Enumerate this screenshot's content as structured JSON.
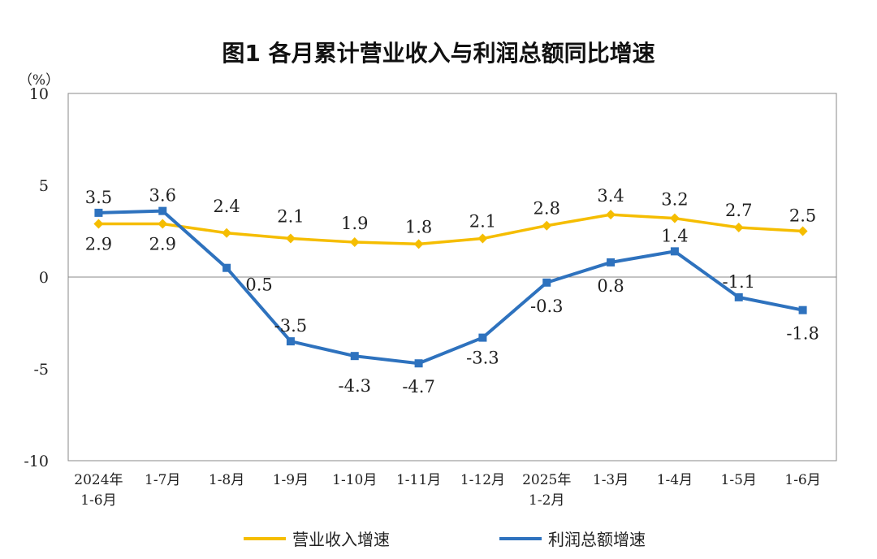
{
  "chart_data": {
    "type": "line",
    "title": "图1  各月累计营业收入与利润总额同比增速",
    "ylabel": "（%）",
    "ylim": [
      -10,
      10
    ],
    "yticks": [
      10,
      5,
      0,
      -5,
      -10
    ],
    "grid": false,
    "legend_position": "bottom",
    "categories": [
      [
        "2024年",
        "1-6月"
      ],
      [
        "1-7月"
      ],
      [
        "1-8月"
      ],
      [
        "1-9月"
      ],
      [
        "1-10月"
      ],
      [
        "1-11月"
      ],
      [
        "1-12月"
      ],
      [
        "2025年",
        "1-2月"
      ],
      [
        "1-3月"
      ],
      [
        "1-4月"
      ],
      [
        "1-5月"
      ],
      [
        "1-6月"
      ]
    ],
    "series": [
      {
        "name": "营业收入增速",
        "color": "#F5BD00",
        "marker": "diamond",
        "values": [
          2.9,
          2.9,
          2.4,
          2.1,
          1.9,
          1.8,
          2.1,
          2.8,
          3.4,
          3.2,
          2.7,
          2.5
        ]
      },
      {
        "name": "利润总额增速",
        "color": "#2E72BE",
        "marker": "square",
        "values": [
          3.5,
          3.6,
          0.5,
          -3.5,
          -4.3,
          -4.7,
          -3.3,
          -0.3,
          0.8,
          1.4,
          -1.1,
          -1.8
        ]
      }
    ]
  }
}
